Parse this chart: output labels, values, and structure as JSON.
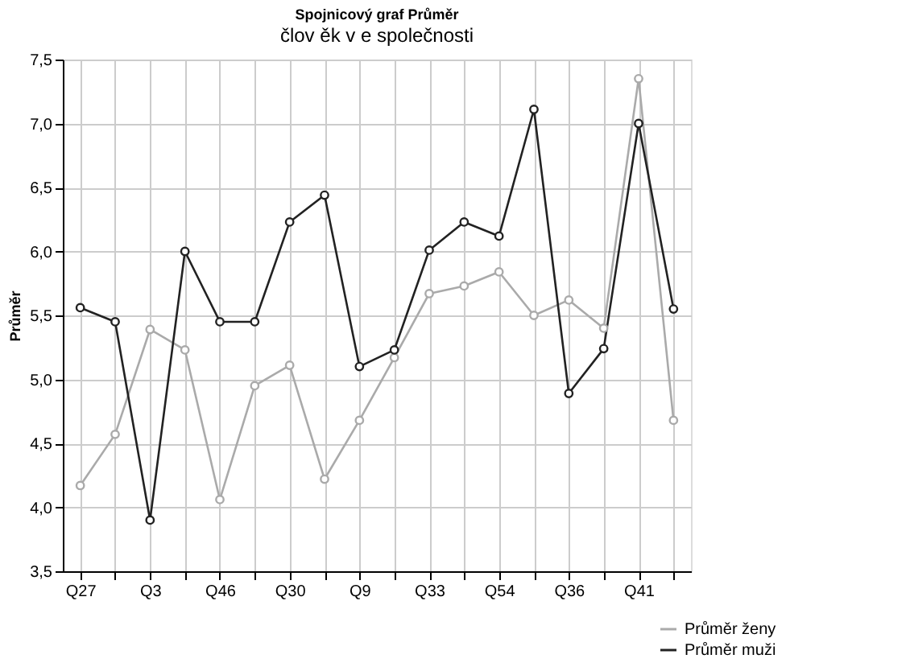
{
  "chart_data": {
    "type": "line",
    "title": "Spojnicový graf Průměr",
    "subtitle": "člov ěk v e společnosti",
    "ylabel": "Průměr",
    "categories": [
      "Q27",
      null,
      "Q3",
      null,
      "Q46",
      null,
      "Q30",
      null,
      "Q9",
      null,
      "Q33",
      null,
      "Q54",
      null,
      "Q36",
      null,
      "Q41",
      null
    ],
    "series": [
      {
        "name": "Průměr ženy",
        "color": "#aaaaaa",
        "values": [
          4.17,
          4.57,
          5.39,
          5.23,
          4.06,
          4.95,
          5.11,
          4.22,
          4.68,
          5.17,
          5.67,
          5.73,
          5.84,
          5.5,
          5.62,
          5.4,
          7.35,
          4.68
        ]
      },
      {
        "name": "Průměr muži",
        "color": "#222222",
        "values": [
          5.56,
          5.45,
          3.9,
          6.0,
          5.45,
          5.45,
          6.23,
          6.44,
          5.1,
          5.23,
          6.01,
          6.23,
          6.12,
          7.11,
          4.89,
          5.24,
          7.0,
          5.55
        ]
      }
    ],
    "ylim": [
      3.5,
      7.5
    ],
    "yticks": [
      {
        "value": 3.5,
        "label": "3,5"
      },
      {
        "value": 4.0,
        "label": "4,0"
      },
      {
        "value": 4.5,
        "label": "4,5"
      },
      {
        "value": 5.0,
        "label": "5,0"
      },
      {
        "value": 5.5,
        "label": "5,5"
      },
      {
        "value": 6.0,
        "label": "6,0"
      },
      {
        "value": 6.5,
        "label": "6,5"
      },
      {
        "value": 7.0,
        "label": "7,0"
      },
      {
        "value": 7.5,
        "label": "7,5"
      }
    ],
    "grid": true,
    "legend": "bottom right",
    "marker": "circle",
    "line_style": "solid"
  }
}
